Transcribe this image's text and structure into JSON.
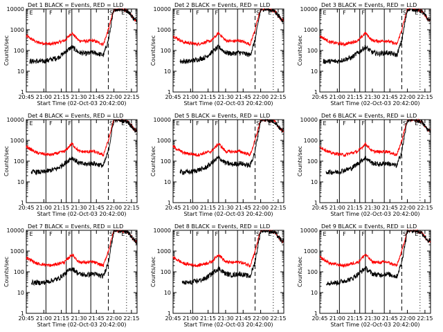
{
  "chart_data": {
    "type": "line",
    "xlabel": "Start Time (02-Oct-03 20:42:00)",
    "ylabel": "Counts/sec",
    "x_range_minutes": [
      20.75,
      22.33
    ],
    "xticks": [
      "20:45",
      "21:00",
      "21:15",
      "21:30",
      "21:45",
      "22:00",
      "22:15"
    ],
    "xtick_values": [
      20.75,
      21.0,
      21.25,
      21.5,
      21.75,
      22.0,
      22.25
    ],
    "yscale": "log",
    "ylim": [
      1,
      10000
    ],
    "yticks": [
      "1",
      "10",
      "100",
      "1000",
      "10000"
    ],
    "legend_text": "BLACK = Events, RED = LLD",
    "event_marks": {
      "solid": [
        21.03,
        21.32,
        21.4,
        21.67
      ],
      "dashed": [
        21.92,
        22.33
      ],
      "dotted": [
        22.18
      ],
      "labels": [
        {
          "t": 20.82,
          "text": "E"
        },
        {
          "t": 21.1,
          "text": "F"
        },
        {
          "t": 21.37,
          "text": "F"
        },
        {
          "t": 21.96,
          "text": "S"
        },
        {
          "t": 22.13,
          "text": "E"
        }
      ]
    },
    "series_shape": {
      "black": [
        [
          21.0,
          30
        ],
        [
          21.2,
          45
        ],
        [
          21.3,
          80
        ],
        [
          21.4,
          150
        ],
        [
          21.5,
          80
        ],
        [
          21.6,
          70
        ],
        [
          21.7,
          80
        ],
        [
          21.85,
          60
        ],
        [
          21.92,
          300
        ],
        [
          22.0,
          10000
        ],
        [
          22.1,
          10000
        ],
        [
          22.2,
          8000
        ],
        [
          22.3,
          3000
        ]
      ],
      "red": [
        [
          20.75,
          500
        ],
        [
          20.9,
          250
        ],
        [
          21.1,
          200
        ],
        [
          21.3,
          300
        ],
        [
          21.4,
          700
        ],
        [
          21.5,
          300
        ],
        [
          21.6,
          280
        ],
        [
          21.7,
          300
        ],
        [
          21.85,
          200
        ],
        [
          21.92,
          1000
        ],
        [
          22.0,
          10000
        ],
        [
          22.1,
          10000
        ],
        [
          22.2,
          8000
        ],
        [
          22.3,
          3000
        ]
      ]
    },
    "panels": [
      {
        "title": "Det 1",
        "black_start": 20.8
      },
      {
        "title": "Det 2",
        "black_start": 20.85
      },
      {
        "title": "Det 3",
        "black_start": 20.8
      },
      {
        "title": "Det 4",
        "black_start": 20.82
      },
      {
        "title": "Det 5",
        "black_start": 20.85
      },
      {
        "title": "Det 6",
        "black_start": 20.84
      },
      {
        "title": "Det 7",
        "black_start": 20.82
      },
      {
        "title": "Det 8",
        "black_start": 20.88
      },
      {
        "title": "Det 9",
        "black_start": 20.84
      }
    ]
  }
}
